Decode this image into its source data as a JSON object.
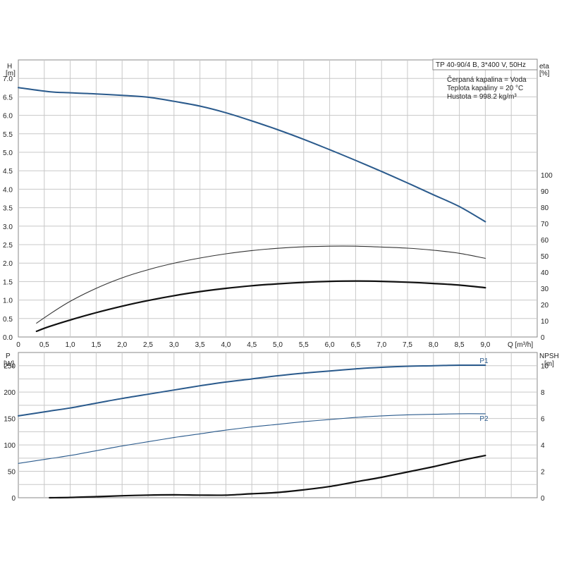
{
  "chart_data": [
    {
      "type": "line",
      "title": "TP 40-90/4 B, 3*400 V, 50Hz",
      "info_lines": [
        "Čerpaná kapalina = Voda",
        "Teplota kapaliny = 20 °C",
        "Hustota = 998.2 kg/m³"
      ],
      "xlabel": "Q [m³/h]",
      "xlim": [
        0,
        10
      ],
      "xticks": [
        "0",
        "0,5",
        "1,0",
        "1,5",
        "2,0",
        "2,5",
        "3,0",
        "3,5",
        "4,0",
        "4,5",
        "5,0",
        "5,5",
        "6,0",
        "6,5",
        "7,0",
        "7,5",
        "8,0",
        "8,5",
        "9,0"
      ],
      "ylabel_left": "H",
      "ylabel_left_unit": "[m]",
      "ylim_left": [
        0,
        7.5
      ],
      "yticks_left": [
        "0.0",
        "0.5",
        "1.0",
        "1.5",
        "2.0",
        "2.5",
        "3.0",
        "3.5",
        "4.0",
        "4.5",
        "5.0",
        "5.5",
        "6.0",
        "6.5",
        "7.0"
      ],
      "ylabel_right": "eta",
      "ylabel_right_unit": "[%]",
      "yticks_right": [
        "0",
        "10",
        "20",
        "30",
        "40",
        "50",
        "60",
        "70",
        "80",
        "90",
        "100"
      ],
      "grid": true,
      "series": [
        {
          "axis": "left",
          "color": "#2a5a8c",
          "width": 2,
          "x": [
            0,
            0.6,
            1.0,
            1.5,
            2.0,
            2.5,
            3.0,
            3.5,
            4.0,
            4.5,
            5.0,
            5.5,
            6.0,
            6.5,
            7.0,
            7.5,
            8.0,
            8.5,
            9.0
          ],
          "values": [
            6.75,
            6.64,
            6.61,
            6.58,
            6.54,
            6.49,
            6.38,
            6.25,
            6.07,
            5.85,
            5.61,
            5.35,
            5.07,
            4.78,
            4.48,
            4.17,
            3.85,
            3.53,
            3.12
          ]
        },
        {
          "axis": "right",
          "color": "#333333",
          "width": 1.1,
          "x": [
            0.35,
            0.6,
            1.0,
            1.5,
            2.0,
            2.5,
            3.0,
            3.5,
            4.0,
            4.5,
            5.0,
            5.5,
            6.0,
            6.5,
            7.0,
            7.5,
            8.0,
            8.5,
            9.0
          ],
          "values": [
            8.5,
            14,
            22,
            30,
            36.5,
            41.5,
            45.5,
            48.7,
            51.3,
            53.3,
            54.7,
            55.6,
            56,
            56,
            55.5,
            54.8,
            53.5,
            51.6,
            48.5
          ]
        },
        {
          "axis": "right",
          "color": "#111111",
          "width": 2.2,
          "x": [
            0.35,
            0.6,
            1.0,
            1.5,
            2.0,
            2.5,
            3.0,
            3.5,
            4.0,
            4.5,
            5.0,
            5.5,
            6.0,
            6.5,
            7.0,
            7.5,
            8.0,
            8.5,
            9.0
          ],
          "values": [
            3.5,
            6.5,
            10.5,
            15,
            19,
            22.5,
            25.5,
            28,
            30,
            31.6,
            32.8,
            33.7,
            34.3,
            34.5,
            34.3,
            33.8,
            33,
            32,
            30.4
          ]
        }
      ]
    },
    {
      "type": "line",
      "xlim": [
        0,
        10
      ],
      "ylabel_left": "P",
      "ylabel_left_unit": "[W]",
      "ylim_left": [
        0,
        275
      ],
      "yticks_left": [
        "0",
        "50",
        "100",
        "150",
        "200",
        "250"
      ],
      "ylabel_right": "NPSH",
      "ylabel_right_unit": "[m]",
      "ylim_right": [
        0,
        11
      ],
      "yticks_right": [
        "0",
        "2",
        "4",
        "6",
        "8",
        "10"
      ],
      "grid": true,
      "series": [
        {
          "name": "P1",
          "axis": "left",
          "color": "#2a5a8c",
          "width": 2,
          "x": [
            0,
            0.6,
            1.0,
            1.5,
            2.0,
            2.5,
            3.0,
            3.5,
            4.0,
            4.5,
            5.0,
            5.5,
            6.0,
            6.5,
            7.0,
            7.5,
            8.0,
            8.5,
            9.0
          ],
          "values": [
            155,
            164,
            170,
            179,
            188,
            196,
            204,
            212,
            219,
            225,
            231,
            236,
            240,
            244,
            247,
            249,
            250,
            251,
            251
          ]
        },
        {
          "name": "P2",
          "axis": "left",
          "color": "#2a5a8c",
          "width": 1.1,
          "x": [
            0,
            0.6,
            1.0,
            1.5,
            2.0,
            2.5,
            3.0,
            3.5,
            4.0,
            4.5,
            5.0,
            5.5,
            6.0,
            6.5,
            7.0,
            7.5,
            8.0,
            8.5,
            9.0
          ],
          "values": [
            65,
            74,
            80,
            89,
            98,
            106,
            114,
            121,
            128,
            134,
            139,
            144,
            148,
            152,
            155,
            157,
            158,
            159,
            159
          ]
        },
        {
          "axis": "right",
          "color": "#111111",
          "width": 2.2,
          "x": [
            0.6,
            1.0,
            1.5,
            2.0,
            2.5,
            3.0,
            3.5,
            4.0,
            4.5,
            5.0,
            5.5,
            6.0,
            6.5,
            7.0,
            7.5,
            8.0,
            8.5,
            9.0
          ],
          "values": [
            0,
            0.02,
            0.08,
            0.15,
            0.2,
            0.22,
            0.2,
            0.2,
            0.3,
            0.4,
            0.6,
            0.85,
            1.2,
            1.55,
            1.95,
            2.35,
            2.8,
            3.2
          ]
        }
      ]
    }
  ]
}
